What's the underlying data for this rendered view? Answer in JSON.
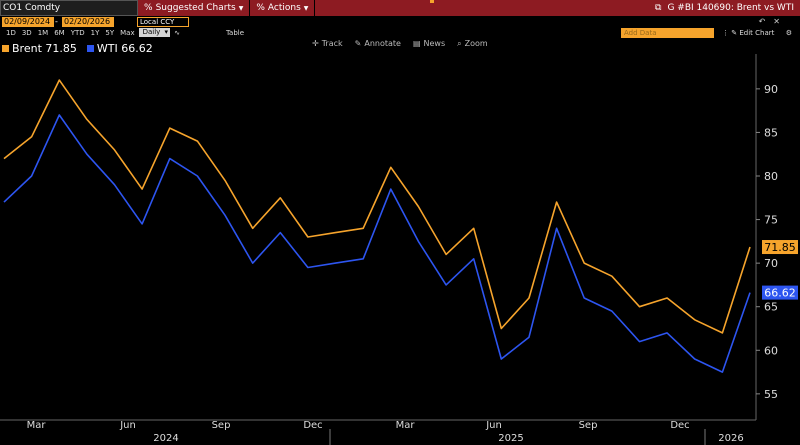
{
  "header": {
    "ticker": "CO1 Comdty",
    "suggested_charts": "Suggested Charts",
    "actions": "Actions",
    "chart_title": "G #BI 140690: Brent vs WTI"
  },
  "controls": {
    "start_date": "02/09/2024",
    "end_date": "02/20/2026",
    "currency": "Local CCY",
    "ranges": [
      "1D",
      "3D",
      "1M",
      "6M",
      "YTD",
      "1Y",
      "5Y",
      "Max"
    ],
    "frequency": "Daily",
    "table_label": "Table",
    "add_data_placeholder": "Add Data",
    "edit_chart": "Edit Chart"
  },
  "toolbar": {
    "track": "Track",
    "annotate": "Annotate",
    "news": "News",
    "zoom": "Zoom"
  },
  "legend": {
    "brent": "Brent 71.85",
    "wti": "WTI 66.62"
  },
  "colors": {
    "brent": "#f6a42c",
    "wti": "#2d55f0",
    "header_red": "#8d1b22",
    "background": "#000000"
  },
  "chart_data": {
    "type": "line",
    "ylim": [
      52,
      94
    ],
    "yticks": [
      55,
      60,
      65,
      70,
      75,
      80,
      85,
      90
    ],
    "x_months": [
      "Mar",
      "Jun",
      "Sep",
      "Dec",
      "Mar",
      "Jun",
      "Sep",
      "Dec"
    ],
    "x_years": [
      "2024",
      "2025",
      "2026"
    ],
    "last_values": {
      "brent": "71.85",
      "wti": "66.62"
    },
    "x_index": [
      0,
      4,
      8,
      12,
      16,
      20,
      24,
      28,
      32,
      36,
      40,
      44,
      48,
      52,
      56,
      60,
      64,
      68,
      72,
      76,
      80,
      84,
      88,
      92,
      96,
      100,
      104,
      108
    ],
    "series": [
      {
        "name": "Brent",
        "values": [
          82.0,
          84.5,
          91.0,
          86.5,
          83.0,
          78.5,
          85.5,
          84.0,
          79.5,
          74.0,
          77.5,
          73.0,
          73.5,
          74.0,
          81.0,
          76.5,
          71.0,
          74.0,
          62.5,
          66.0,
          77.0,
          70.0,
          68.5,
          65.0,
          66.0,
          63.5,
          62.0,
          71.85
        ]
      },
      {
        "name": "WTI",
        "values": [
          77.0,
          80.0,
          87.0,
          82.5,
          79.0,
          74.5,
          82.0,
          80.0,
          75.5,
          70.0,
          73.5,
          69.5,
          70.0,
          70.5,
          78.5,
          72.5,
          67.5,
          70.5,
          59.0,
          61.5,
          74.0,
          66.0,
          64.5,
          61.0,
          62.0,
          59.0,
          57.5,
          66.62
        ]
      }
    ]
  }
}
